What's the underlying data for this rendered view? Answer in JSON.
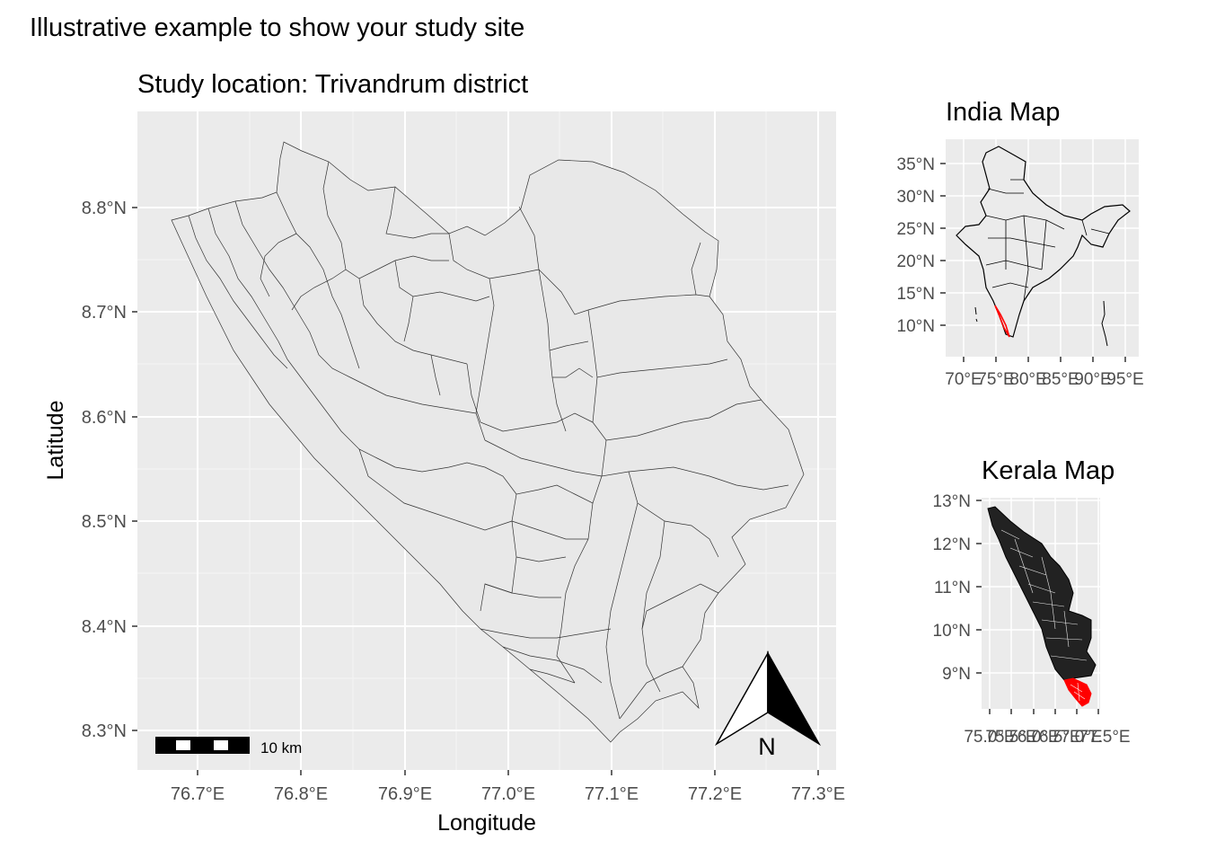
{
  "figure": {
    "title": "Illustrative example to show your study site"
  },
  "main_map": {
    "subtitle": "Study location: Trivandrum district",
    "xlabel": "Longitude",
    "ylabel": "Latitude",
    "x_ticks": [
      "76.7°E",
      "76.8°E",
      "76.9°E",
      "77.0°E",
      "77.1°E",
      "77.2°E",
      "77.3°E"
    ],
    "y_ticks": [
      "8.8°N",
      "8.7°N",
      "8.6°N",
      "8.5°N",
      "8.4°N",
      "8.3°N"
    ],
    "scale_bar_label": "10 km",
    "north_arrow_label": "N",
    "panel_background": "#ebebeb",
    "fill_color": "#e8e8e8",
    "border_color": "#333333"
  },
  "india_map": {
    "title": "India Map",
    "x_ticks": [
      "70°E",
      "75°E",
      "80°E",
      "85°E",
      "90°E",
      "95°E"
    ],
    "y_ticks": [
      "35°N",
      "30°N",
      "25°N",
      "20°N",
      "15°N",
      "10°N"
    ],
    "highlight_color": "#ff0000"
  },
  "kerala_map": {
    "title": "Kerala Map",
    "x_ticks": [
      "75.0°E",
      "75.5°E",
      "76.0°E",
      "76.5°E",
      "77.0°E",
      "77.5°E"
    ],
    "y_ticks": [
      "13°N",
      "12°N",
      "11°N",
      "10°N",
      "9°N"
    ],
    "highlight_color": "#ff0000"
  }
}
